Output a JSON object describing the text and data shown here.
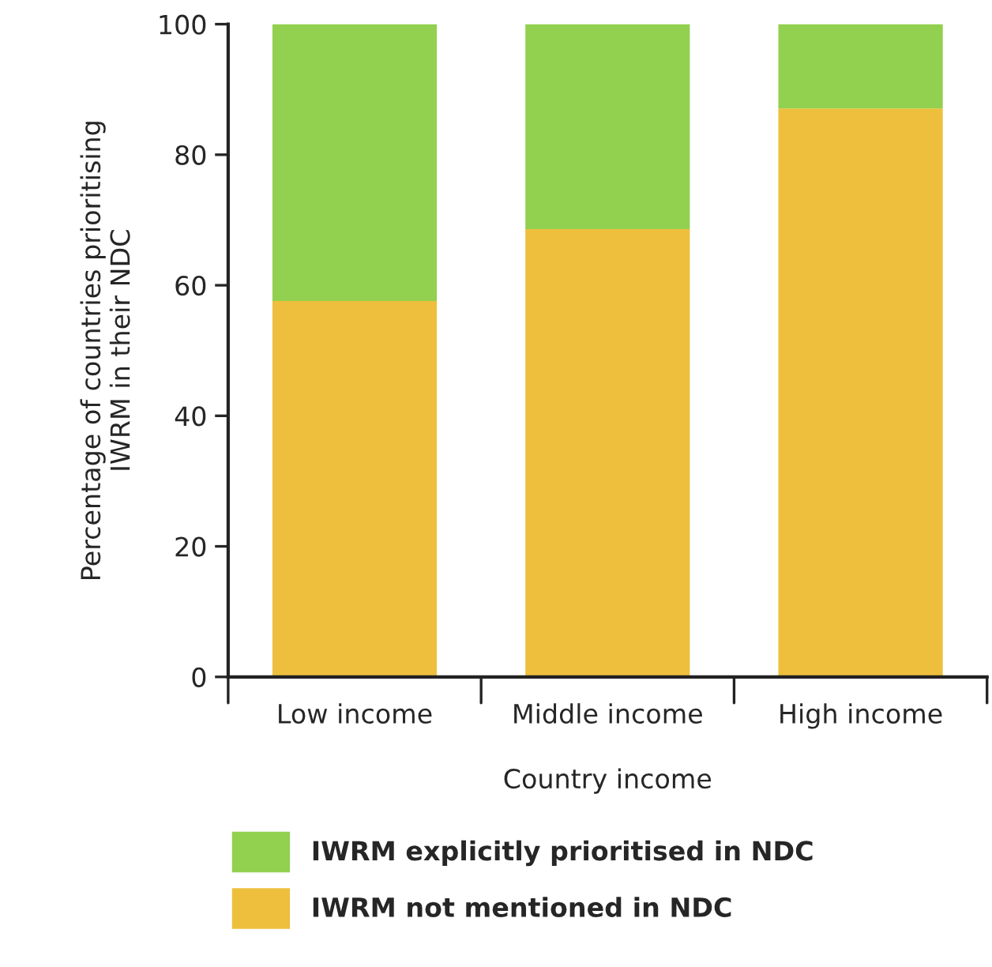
{
  "chart_data": {
    "type": "bar",
    "stacked": true,
    "xlabel": "Country income",
    "ylabel": "Percentage of countries prioritising\nIWRM in their NDC",
    "categories": [
      "Low income",
      "Middle income",
      "High income"
    ],
    "series": [
      {
        "name": "IWRM not mentioned in NDC",
        "color": "#edbf3c",
        "values": [
          57.6,
          68.6,
          87.1
        ]
      },
      {
        "name": "IWRM explicitly prioritised in NDC",
        "color": "#92d050",
        "values": [
          42.4,
          31.4,
          12.9
        ]
      }
    ],
    "ylim": [
      0,
      100
    ],
    "yticks": [
      0,
      20,
      40,
      60,
      80,
      100
    ],
    "grid": false,
    "legend": "bottom"
  }
}
